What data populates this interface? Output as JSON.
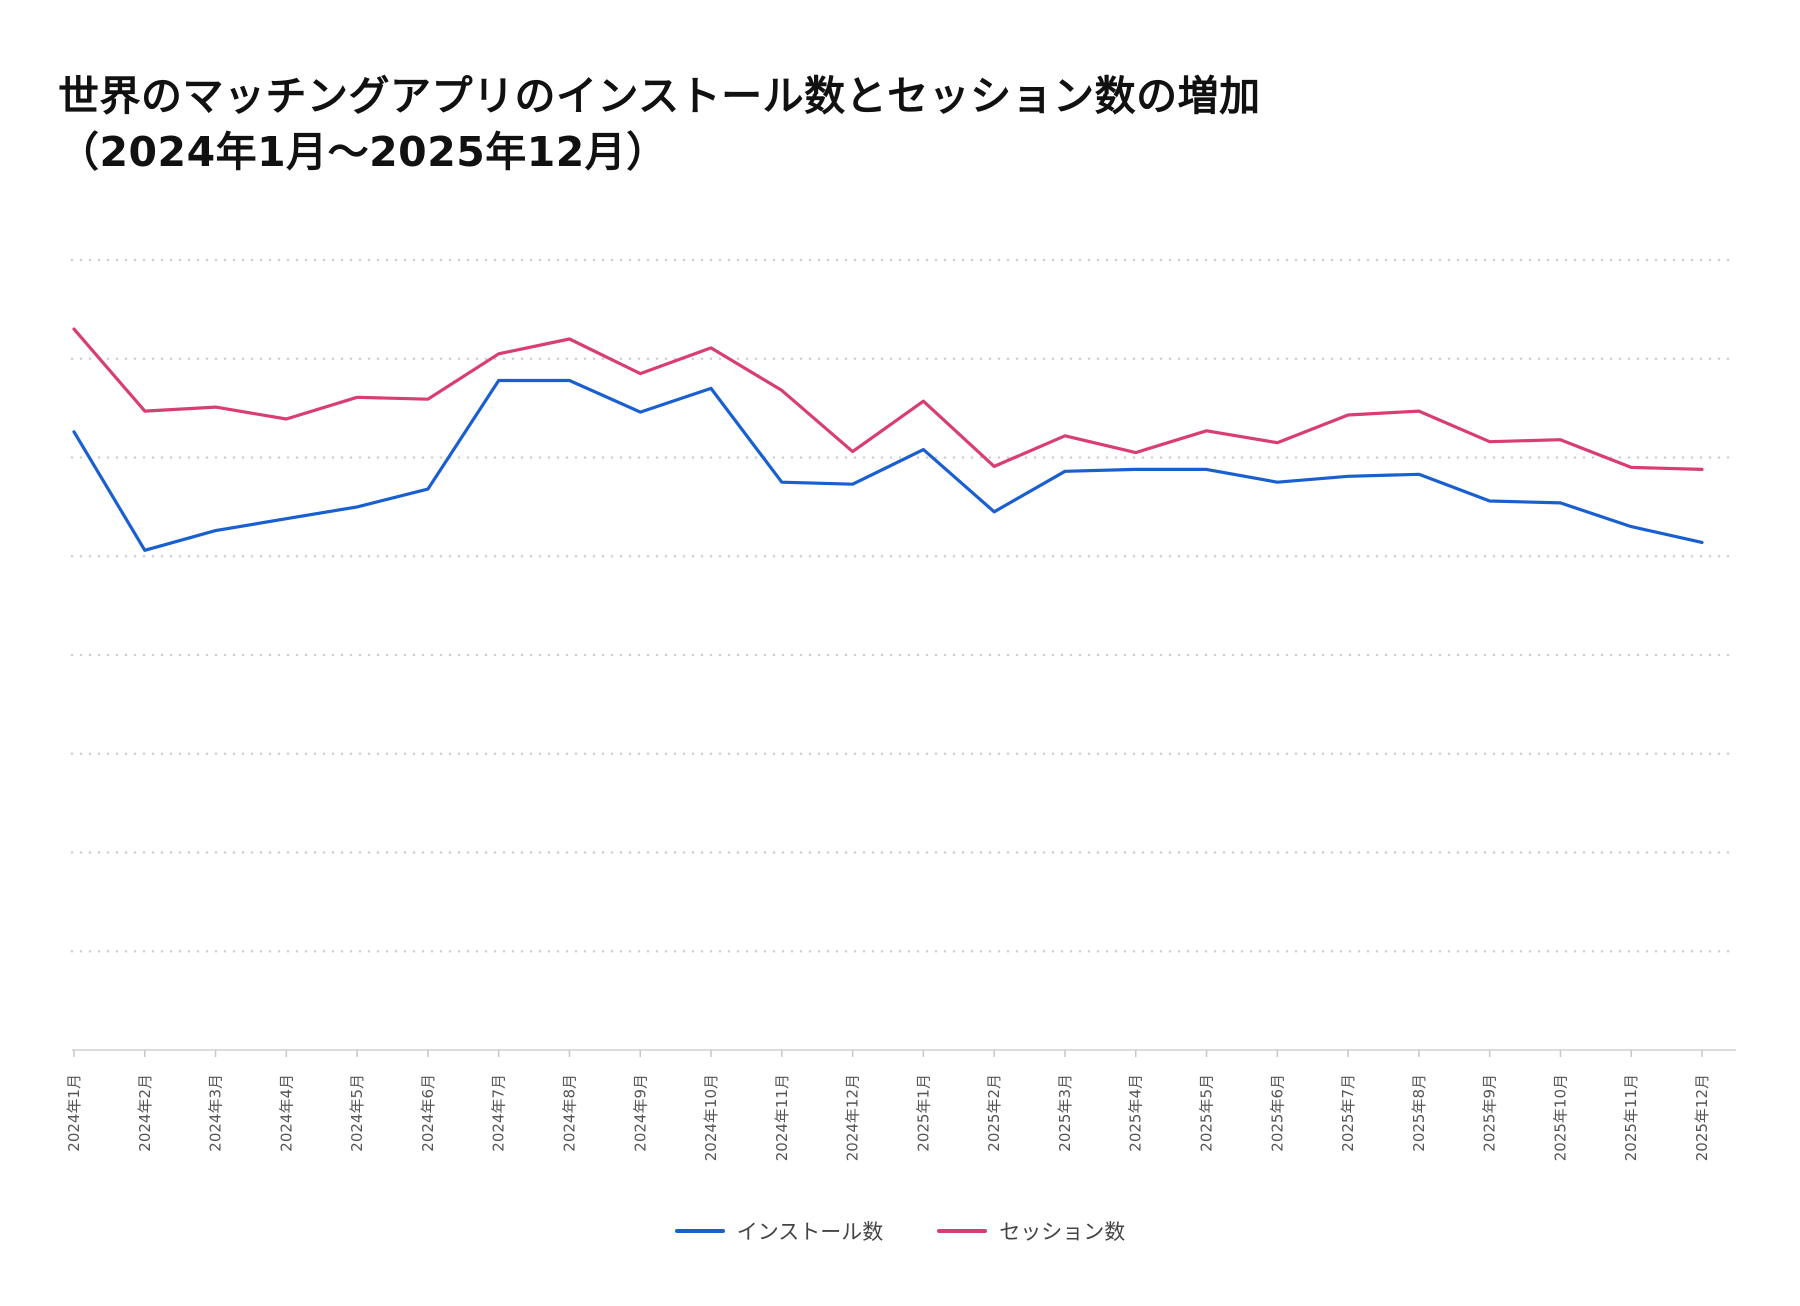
{
  "chart_data": {
    "type": "line",
    "title": "世界のマッチングアプリのインストール数とセッション数の増加",
    "subtitle": "（2024年1月〜2025年12月）",
    "xlabel": "",
    "ylabel": "",
    "ylim": [
      0,
      800
    ],
    "grid": true,
    "y_gridlines": [
      100,
      200,
      300,
      400,
      500,
      600,
      700,
      800
    ],
    "y_tick_labels_shown": false,
    "legend_position": "bottom-center",
    "categories": [
      "2024年1月",
      "2024年2月",
      "2024年3月",
      "2024年4月",
      "2024年5月",
      "2024年6月",
      "2024年7月",
      "2024年8月",
      "2024年9月",
      "2024年10月",
      "2024年11月",
      "2024年12月",
      "2025年1月",
      "2025年2月",
      "2025年3月",
      "2025年4月",
      "2025年5月",
      "2025年6月",
      "2025年7月",
      "2025年8月",
      "2025年9月",
      "2025年10月",
      "2025年11月",
      "2025年12月"
    ],
    "series": [
      {
        "name": "インストール数",
        "color": "#1a5fd0",
        "values": [
          626,
          506,
          526,
          538,
          550,
          568,
          678,
          678,
          646,
          670,
          575,
          573,
          608,
          545,
          586,
          588,
          588,
          575,
          581,
          583,
          556,
          554,
          530,
          514
        ]
      },
      {
        "name": "セッション数",
        "color": "#d83d74",
        "values": [
          730,
          647,
          651,
          639,
          661,
          659,
          705,
          720,
          685,
          711,
          668,
          606,
          657,
          591,
          622,
          605,
          627,
          615,
          643,
          647,
          616,
          618,
          590,
          588
        ]
      }
    ]
  }
}
